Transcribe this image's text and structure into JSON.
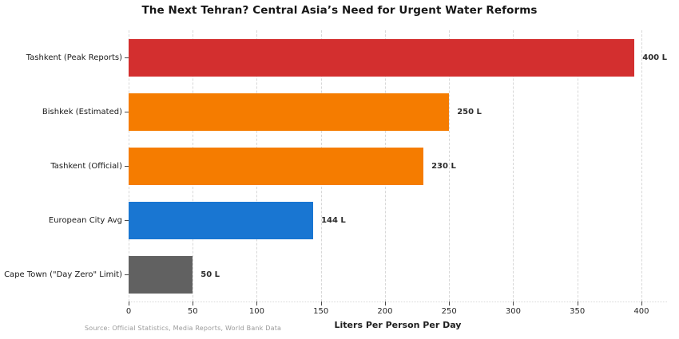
{
  "title": "The Next Tehran? Central Asia’s Need for Urgent Water Reforms",
  "source_note": "Source: Official Statistics, Media Reports, World Bank Data",
  "chart_data": {
    "type": "bar",
    "orientation": "horizontal",
    "title": "The Next Tehran? Central Asia’s Need for Urgent Water Reforms",
    "categories": [
      "Tashkent (Peak Reports)",
      "Bishkek (Estimated)",
      "Tashkent (Official)",
      "European City Avg",
      "Cape Town (\"Day Zero\" Limit)"
    ],
    "values": [
      400,
      250,
      230,
      144,
      50
    ],
    "value_labels": [
      "400 L",
      "250 L",
      "230 L",
      "144 L",
      "50 L"
    ],
    "bar_colors": [
      "#d32f2f",
      "#f57c00",
      "#f57c00",
      "#1976d2",
      "#616161"
    ],
    "xlabel": "Liters Per Person Per Day",
    "ylabel": "",
    "xlim": [
      0,
      420
    ],
    "xticks": [
      0,
      50,
      100,
      150,
      200,
      250,
      300,
      350,
      400
    ],
    "grid": "vertical-dashed",
    "legend": false
  }
}
